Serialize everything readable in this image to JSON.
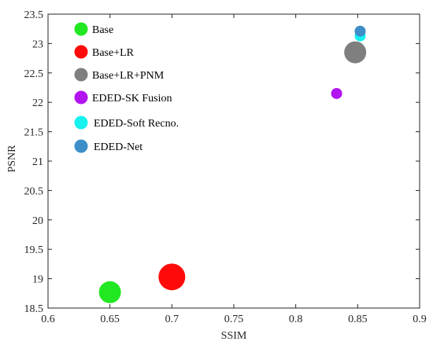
{
  "chart_data": {
    "type": "scatter",
    "title": "",
    "xlabel": "SSIM",
    "ylabel": "PSNR",
    "xlim": [
      0.6,
      0.9
    ],
    "ylim": [
      18.5,
      23.5
    ],
    "xticks": [
      "0.6",
      "0.65",
      "0.7",
      "0.75",
      "0.8",
      "0.85",
      "0.9"
    ],
    "yticks": [
      "18.5",
      "19",
      "19.5",
      "20",
      "20.5",
      "21",
      "21.5",
      "22",
      "22.5",
      "23",
      "23.5"
    ],
    "grid": false,
    "legend_position": "top-left",
    "series": [
      {
        "name": "Base",
        "color": "#22e822",
        "x": 0.65,
        "y": 18.77,
        "size": "medium"
      },
      {
        "name": "Base+LR",
        "color": "#ff0a0a",
        "x": 0.7,
        "y": 19.03,
        "size": "large"
      },
      {
        "name": "Base+LR+PNM",
        "color": "#7f7f7f",
        "x": 0.848,
        "y": 22.85,
        "size": "medium-large"
      },
      {
        "name": "EDED-SK Fusion",
        "color": "#b114f0",
        "x": 0.833,
        "y": 22.15,
        "size": "small"
      },
      {
        "name": "EDED-Soft Recno.",
        "color": "#16f2f0",
        "x": 0.852,
        "y": 23.13,
        "size": "small"
      },
      {
        "name": "EDED-Net",
        "color": "#3c8fc8",
        "x": 0.852,
        "y": 23.21,
        "size": "small"
      }
    ]
  }
}
